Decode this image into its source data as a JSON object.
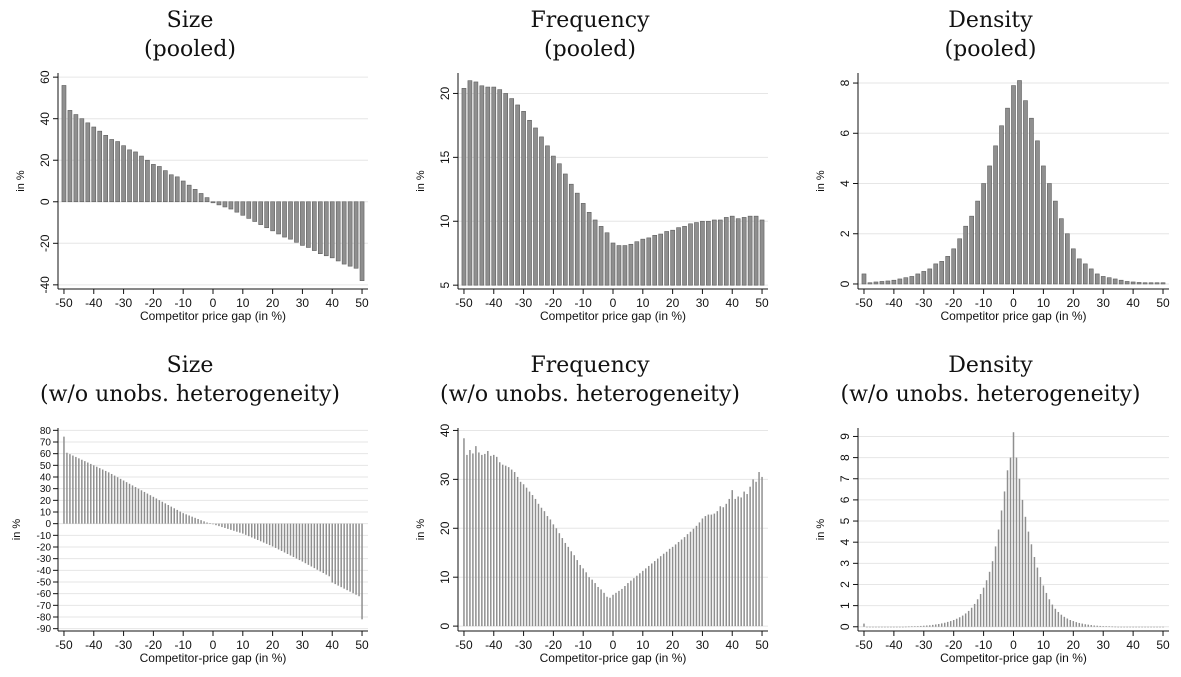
{
  "colors": {
    "bar": "#8f8f8f",
    "bar_edge": "#5e5e5e",
    "grid": "#e6e6e6",
    "axis": "#111111"
  },
  "chart_data": [
    {
      "id": "size-pooled",
      "type": "bar",
      "title": "Size",
      "subtitle": "(pooled)",
      "xlabel": "Competitor price gap (in %)",
      "ylabel": "in %",
      "xlim": [
        -52,
        52
      ],
      "ylim": [
        -42,
        62
      ],
      "baseline": 0,
      "yticks": [
        -40,
        -20,
        0,
        20,
        40,
        60
      ],
      "xticks": [
        -50,
        -40,
        -30,
        -20,
        -10,
        0,
        10,
        20,
        30,
        40,
        50
      ],
      "grid": true,
      "bar_width": 1.35,
      "x": [
        -50,
        -48,
        -46,
        -44,
        -42,
        -40,
        -38,
        -36,
        -34,
        -32,
        -30,
        -28,
        -26,
        -24,
        -22,
        -20,
        -18,
        -16,
        -14,
        -12,
        -10,
        -8,
        -6,
        -4,
        -2,
        0,
        2,
        4,
        6,
        8,
        10,
        12,
        14,
        16,
        18,
        20,
        22,
        24,
        26,
        28,
        30,
        32,
        34,
        36,
        38,
        40,
        42,
        44,
        46,
        48,
        50
      ],
      "values": [
        56,
        44,
        42,
        40,
        38,
        36,
        34,
        32,
        30,
        29,
        27,
        25,
        24,
        22,
        20,
        18,
        17,
        15,
        13,
        12,
        10,
        8,
        6,
        4,
        2,
        -0.5,
        -1.5,
        -2.5,
        -3.5,
        -5,
        -6.5,
        -8,
        -9.5,
        -11,
        -12.5,
        -14,
        -15.5,
        -17,
        -18,
        -19.5,
        -21,
        -22,
        -23.5,
        -25,
        -26,
        -27,
        -28.5,
        -30,
        -31,
        -32,
        -38
      ]
    },
    {
      "id": "frequency-pooled",
      "type": "bar",
      "title": "Frequency",
      "subtitle": "(pooled)",
      "xlabel": "Competitor price gap (in %)",
      "ylabel": "in %",
      "xlim": [
        -52,
        52
      ],
      "ylim": [
        4.7,
        21.6
      ],
      "baseline": 5,
      "yticks": [
        5,
        10,
        15,
        20
      ],
      "xticks": [
        -50,
        -40,
        -30,
        -20,
        -10,
        0,
        10,
        20,
        30,
        40,
        50
      ],
      "grid": true,
      "bar_width": 1.35,
      "x": [
        -50,
        -48,
        -46,
        -44,
        -42,
        -40,
        -38,
        -36,
        -34,
        -32,
        -30,
        -28,
        -26,
        -24,
        -22,
        -20,
        -18,
        -16,
        -14,
        -12,
        -10,
        -8,
        -6,
        -4,
        -2,
        0,
        2,
        4,
        6,
        8,
        10,
        12,
        14,
        16,
        18,
        20,
        22,
        24,
        26,
        28,
        30,
        32,
        34,
        36,
        38,
        40,
        42,
        44,
        46,
        48,
        50
      ],
      "values": [
        20.4,
        21.0,
        20.9,
        20.6,
        20.5,
        20.5,
        20.3,
        20.0,
        19.6,
        19.1,
        18.6,
        17.9,
        17.3,
        16.6,
        15.9,
        15.1,
        14.5,
        13.7,
        12.9,
        12.2,
        11.4,
        10.7,
        10.1,
        9.6,
        9.1,
        8.3,
        8.1,
        8.1,
        8.2,
        8.4,
        8.6,
        8.7,
        8.9,
        9.0,
        9.2,
        9.3,
        9.5,
        9.6,
        9.8,
        9.9,
        10.0,
        10.0,
        10.1,
        10.1,
        10.3,
        10.4,
        10.2,
        10.3,
        10.4,
        10.4,
        10.1
      ]
    },
    {
      "id": "density-pooled",
      "type": "bar",
      "title": "Density",
      "subtitle": "(pooled)",
      "xlabel": "Competitor price gap (in %)",
      "ylabel": "in %",
      "xlim": [
        -52,
        52
      ],
      "ylim": [
        -0.2,
        8.4
      ],
      "baseline": 0,
      "yticks": [
        0,
        2,
        4,
        6,
        8
      ],
      "xticks": [
        -50,
        -40,
        -30,
        -20,
        -10,
        0,
        10,
        20,
        30,
        40,
        50
      ],
      "grid": true,
      "bar_width": 1.35,
      "x": [
        -50,
        -48,
        -46,
        -44,
        -42,
        -40,
        -38,
        -36,
        -34,
        -32,
        -30,
        -28,
        -26,
        -24,
        -22,
        -20,
        -18,
        -16,
        -14,
        -12,
        -10,
        -8,
        -6,
        -4,
        -2,
        0,
        2,
        4,
        6,
        8,
        10,
        12,
        14,
        16,
        18,
        20,
        22,
        24,
        26,
        28,
        30,
        32,
        34,
        36,
        38,
        40,
        42,
        44,
        46,
        48,
        50
      ],
      "values": [
        0.4,
        0.05,
        0.08,
        0.1,
        0.12,
        0.15,
        0.2,
        0.25,
        0.3,
        0.4,
        0.5,
        0.6,
        0.8,
        0.9,
        1.1,
        1.4,
        1.8,
        2.3,
        2.7,
        3.3,
        4.0,
        4.7,
        5.5,
        6.3,
        7.0,
        7.9,
        8.1,
        7.3,
        6.6,
        5.7,
        4.7,
        4.0,
        3.3,
        2.6,
        2.0,
        1.4,
        1.0,
        0.8,
        0.6,
        0.4,
        0.3,
        0.25,
        0.2,
        0.15,
        0.1,
        0.08,
        0.06,
        0.05,
        0.05,
        0.05,
        0.05
      ]
    },
    {
      "id": "size-unobs",
      "type": "bar",
      "title": "Size",
      "subtitle": "(w/o unobs. heterogeneity)",
      "xlabel": "Competitor-price gap (in %)",
      "ylabel": "in %",
      "xlim": [
        -52,
        52
      ],
      "ylim": [
        -92,
        82
      ],
      "baseline": 0,
      "yticks": [
        80,
        70,
        60,
        50,
        40,
        30,
        20,
        10,
        0,
        -10,
        -20,
        -30,
        -40,
        -50,
        -60,
        -70,
        -80,
        -90
      ],
      "xticks": [
        -50,
        -40,
        -30,
        -20,
        -10,
        0,
        10,
        20,
        30,
        40,
        50
      ],
      "grid": true,
      "bar_width": 0.5,
      "x": [
        -50,
        -49,
        -48,
        -47,
        -46,
        -45,
        -44,
        -43,
        -42,
        -41,
        -40,
        -39,
        -38,
        -37,
        -36,
        -35,
        -34,
        -33,
        -32,
        -31,
        -30,
        -29,
        -28,
        -27,
        -26,
        -25,
        -24,
        -23,
        -22,
        -21,
        -20,
        -19,
        -18,
        -17,
        -16,
        -15,
        -14,
        -13,
        -12,
        -11,
        -10,
        -9,
        -8,
        -7,
        -6,
        -5,
        -4,
        -3,
        -2,
        -1,
        0,
        1,
        2,
        3,
        4,
        5,
        6,
        7,
        8,
        9,
        10,
        11,
        12,
        13,
        14,
        15,
        16,
        17,
        18,
        19,
        20,
        21,
        22,
        23,
        24,
        25,
        26,
        27,
        28,
        29,
        30,
        31,
        32,
        33,
        34,
        35,
        36,
        37,
        38,
        39,
        40,
        41,
        42,
        43,
        44,
        45,
        46,
        47,
        48,
        49,
        50
      ],
      "values": [
        74.6,
        60.8,
        59.6,
        58.4,
        57.2,
        56.0,
        54.8,
        53.6,
        52.4,
        51.2,
        50.0,
        48.8,
        47.6,
        46.4,
        45.2,
        44.0,
        42.6,
        41.2,
        39.8,
        38.4,
        37.0,
        35.6,
        34.2,
        32.8,
        31.4,
        30.0,
        28.6,
        27.2,
        25.8,
        24.4,
        23.0,
        21.6,
        20.2,
        18.8,
        17.4,
        16.0,
        14.6,
        13.2,
        11.8,
        10.4,
        9.0,
        8.0,
        7.0,
        6.0,
        5.0,
        4.0,
        3.0,
        2.0,
        1.0,
        0.5,
        -0.5,
        -1.3,
        -2.1,
        -2.9,
        -3.7,
        -4.5,
        -5.3,
        -6.1,
        -6.9,
        -7.7,
        -8.5,
        -9.6,
        -10.7,
        -11.8,
        -12.9,
        -14.0,
        -15.1,
        -16.2,
        -17.3,
        -18.4,
        -19.5,
        -20.8,
        -22.1,
        -23.4,
        -24.7,
        -26.0,
        -27.3,
        -28.6,
        -29.9,
        -31.2,
        -32.5,
        -33.9,
        -35.3,
        -36.7,
        -38.1,
        -39.5,
        -40.9,
        -42.3,
        -43.7,
        -45.1,
        -50.5,
        -51.8,
        -53.1,
        -54.4,
        -55.7,
        -57.0,
        -58.3,
        -59.6,
        -60.9,
        -62.2,
        -82.0
      ]
    },
    {
      "id": "frequency-unobs",
      "type": "bar",
      "title": "Frequency",
      "subtitle": "(w/o unobs. heterogeneity)",
      "xlabel": "Competitor-price gap (in %)",
      "ylabel": "in %",
      "xlim": [
        -52,
        52
      ],
      "ylim": [
        -1,
        40.5
      ],
      "baseline": 0,
      "yticks": [
        0,
        10,
        20,
        30,
        40
      ],
      "xticks": [
        -50,
        -40,
        -30,
        -20,
        -10,
        0,
        10,
        20,
        30,
        40,
        50
      ],
      "grid": true,
      "bar_width": 0.5,
      "x": [
        -50,
        -49,
        -48,
        -47,
        -46,
        -45,
        -44,
        -43,
        -42,
        -41,
        -40,
        -39,
        -38,
        -37,
        -36,
        -35,
        -34,
        -33,
        -32,
        -31,
        -30,
        -29,
        -28,
        -27,
        -26,
        -25,
        -24,
        -23,
        -22,
        -21,
        -20,
        -19,
        -18,
        -17,
        -16,
        -15,
        -14,
        -13,
        -12,
        -11,
        -10,
        -9,
        -8,
        -7,
        -6,
        -5,
        -4,
        -3,
        -2,
        -1,
        0,
        1,
        2,
        3,
        4,
        5,
        6,
        7,
        8,
        9,
        10,
        11,
        12,
        13,
        14,
        15,
        16,
        17,
        18,
        19,
        20,
        21,
        22,
        23,
        24,
        25,
        26,
        27,
        28,
        29,
        30,
        31,
        32,
        33,
        34,
        35,
        36,
        37,
        38,
        39,
        40,
        41,
        42,
        43,
        44,
        45,
        46,
        47,
        48,
        49,
        50
      ],
      "values": [
        38.4,
        35.0,
        36.0,
        35.3,
        36.8,
        35.5,
        35.0,
        35.2,
        35.8,
        34.8,
        35.0,
        34.6,
        33.5,
        33.0,
        32.8,
        32.5,
        32.0,
        31.5,
        30.5,
        29.5,
        29.0,
        28.3,
        27.5,
        26.8,
        26.0,
        25.0,
        24.2,
        23.5,
        22.5,
        21.8,
        20.8,
        20.0,
        19.0,
        18.0,
        17.0,
        16.2,
        15.3,
        14.5,
        13.5,
        12.5,
        11.8,
        11.0,
        10.0,
        9.5,
        8.8,
        8.0,
        7.5,
        6.8,
        6.0,
        5.8,
        6.4,
        6.8,
        7.2,
        7.6,
        8.2,
        8.8,
        9.3,
        9.8,
        10.3,
        10.8,
        11.3,
        11.8,
        12.3,
        12.8,
        13.3,
        13.8,
        14.3,
        14.8,
        15.2,
        15.8,
        16.2,
        16.7,
        17.2,
        17.7,
        18.2,
        18.8,
        19.3,
        19.9,
        20.5,
        21.2,
        22.0,
        22.5,
        22.8,
        22.8,
        23.0,
        23.5,
        24.5,
        24.3,
        25.0,
        26.0,
        27.8,
        26.0,
        26.5,
        26.3,
        27.5,
        27.0,
        28.5,
        30.0,
        29.5,
        31.5,
        30.5
      ]
    },
    {
      "id": "density-unobs",
      "type": "bar",
      "title": "Density",
      "subtitle": "(w/o unobs. heterogeneity)",
      "xlabel": "Competitor-price gap (in %)",
      "ylabel": "in %",
      "xlim": [
        -52,
        52
      ],
      "ylim": [
        -0.2,
        9.4
      ],
      "baseline": 0,
      "yticks": [
        0,
        1,
        2,
        3,
        4,
        5,
        6,
        7,
        8,
        9
      ],
      "xticks": [
        -50,
        -40,
        -30,
        -20,
        -10,
        0,
        10,
        20,
        30,
        40,
        50
      ],
      "grid": true,
      "bar_width": 0.5,
      "x": [
        -50,
        -49,
        -48,
        -47,
        -46,
        -45,
        -44,
        -43,
        -42,
        -41,
        -40,
        -39,
        -38,
        -37,
        -36,
        -35,
        -34,
        -33,
        -32,
        -31,
        -30,
        -29,
        -28,
        -27,
        -26,
        -25,
        -24,
        -23,
        -22,
        -21,
        -20,
        -19,
        -18,
        -17,
        -16,
        -15,
        -14,
        -13,
        -12,
        -11,
        -10,
        -9,
        -8,
        -7,
        -6,
        -5,
        -4,
        -3,
        -2,
        -1,
        0,
        1,
        2,
        3,
        4,
        5,
        6,
        7,
        8,
        9,
        10,
        11,
        12,
        13,
        14,
        15,
        16,
        17,
        18,
        19,
        20,
        21,
        22,
        23,
        24,
        25,
        26,
        27,
        28,
        29,
        30,
        31,
        32,
        33,
        34,
        35,
        36,
        37,
        38,
        39,
        40,
        41,
        42,
        43,
        44,
        45,
        46,
        47,
        48,
        49,
        50
      ],
      "values": [
        0.15,
        0,
        0,
        0,
        0,
        0,
        0,
        0,
        0,
        0,
        0,
        0,
        0,
        0,
        0.005,
        0.01,
        0.015,
        0.02,
        0.03,
        0.04,
        0.05,
        0.06,
        0.07,
        0.09,
        0.11,
        0.13,
        0.16,
        0.19,
        0.23,
        0.27,
        0.32,
        0.38,
        0.45,
        0.53,
        0.63,
        0.75,
        0.9,
        1.08,
        1.3,
        1.55,
        1.85,
        2.2,
        2.6,
        3.1,
        3.8,
        4.6,
        5.5,
        6.4,
        7.4,
        8.0,
        9.2,
        8.0,
        7.0,
        6.0,
        5.2,
        4.5,
        3.9,
        3.3,
        2.8,
        2.35,
        1.95,
        1.6,
        1.3,
        1.05,
        0.85,
        0.7,
        0.57,
        0.47,
        0.39,
        0.32,
        0.27,
        0.22,
        0.18,
        0.15,
        0.12,
        0.1,
        0.08,
        0.06,
        0.05,
        0.04,
        0.03,
        0.02,
        0.015,
        0.01,
        0.005,
        0,
        0,
        0,
        0,
        0,
        0,
        0,
        0,
        0,
        0,
        0,
        0,
        0,
        0,
        0,
        0
      ]
    }
  ]
}
